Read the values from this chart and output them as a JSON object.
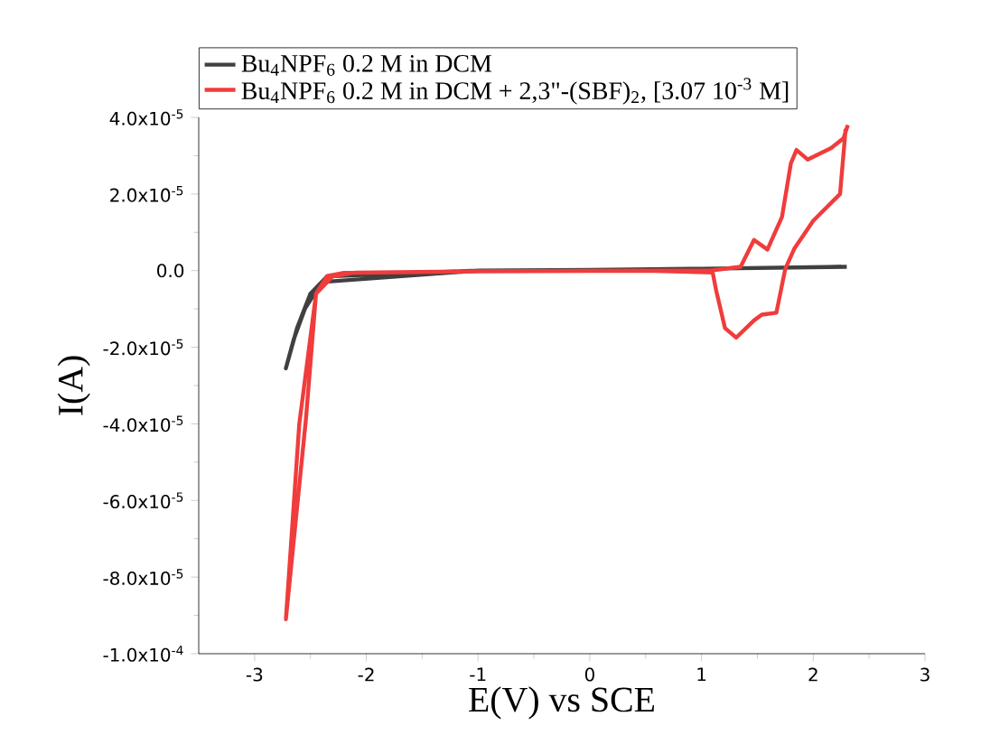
{
  "chart_data": {
    "type": "line",
    "xlabel": "E(V) vs SCE",
    "ylabel": "I(A)",
    "xlim": [
      -3.5,
      3
    ],
    "xticks": [
      -3,
      -2,
      -1,
      0,
      1,
      2,
      3
    ],
    "ylim": [
      -0.0001,
      4e-05
    ],
    "yticks": [
      {
        "value": -0.0001,
        "label": "-1.0x10$^{-4}$"
      },
      {
        "value": -8e-05,
        "label": "-8.0x10$^{-5}$"
      },
      {
        "value": -6e-05,
        "label": "-6.0x10$^{-5}$"
      },
      {
        "value": -4e-05,
        "label": "-4.0x10$^{-5}$"
      },
      {
        "value": -2e-05,
        "label": "-2.0x10$^{-5}$"
      },
      {
        "value": 0,
        "label": "0.0"
      },
      {
        "value": 2e-05,
        "label": "2.0x10$^{-5}$"
      },
      {
        "value": 4e-05,
        "label": "4.0x10$^{-5}$"
      }
    ],
    "legend": "top",
    "grid": false,
    "marker": "none",
    "line_style": "solid",
    "series": [
      {
        "name": "Bu$_{4}$NPF$_{6}$ 0.2 M in DCM",
        "color": "#404040",
        "x": [
          2.3,
          1.0,
          0.0,
          -1.0,
          -2.2,
          -2.4,
          -2.55,
          -2.65,
          -2.72,
          -2.62,
          -2.5,
          -2.35,
          -2.2,
          -1.0,
          0.0,
          1.0,
          2.25
        ],
        "values": [
          1e-06,
          5e-07,
          2e-07,
          0,
          null,
          -3e-06,
          -1e-05,
          -1.8e-05,
          -2.55e-05,
          -1.5e-05,
          -6e-06,
          -1.5e-06,
          null,
          0,
          2e-07,
          5e-07,
          1e-06
        ]
      },
      {
        "name": "Bu$_{4}$NPF$_{6}$ 0.2 M in DCM + 2,3\"-(SBF)$_{2}$, [3.07 10$^{-3}$ M]",
        "color": "#f03c3c",
        "x": [
          2.29,
          2.24,
          2.0,
          1.83,
          1.75,
          1.67,
          1.54,
          1.47,
          1.31,
          1.21,
          1.13,
          1.1,
          0.5,
          -1.0,
          -2.2,
          -2.35,
          -2.45,
          -2.54,
          -2.72,
          -2.6,
          -2.45,
          -2.3,
          -2.1,
          -1.0,
          0.5,
          1.07,
          1.35,
          1.47,
          1.59,
          1.72,
          1.8,
          1.85,
          1.95,
          2.16,
          2.27,
          2.31
        ],
        "values": [
          3.7e-05,
          2e-05,
          1.3e-05,
          5.7e-06,
          5e-07,
          -1.1e-05,
          -1.15e-05,
          -1.3e-05,
          -1.75e-05,
          -1.5e-05,
          -5e-06,
          -5e-07,
          0,
          -2e-07,
          -6e-07,
          -1.4e-06,
          -6e-06,
          -3.86e-05,
          -9.1e-05,
          -4e-05,
          -6e-06,
          -1.5e-06,
          -5e-07,
          -2e-07,
          0,
          0,
          1e-06,
          8e-06,
          5.5e-06,
          1.4e-05,
          2.8e-05,
          3.15e-05,
          2.9e-05,
          3.2e-05,
          3.45e-05,
          3.8e-05
        ]
      }
    ]
  }
}
